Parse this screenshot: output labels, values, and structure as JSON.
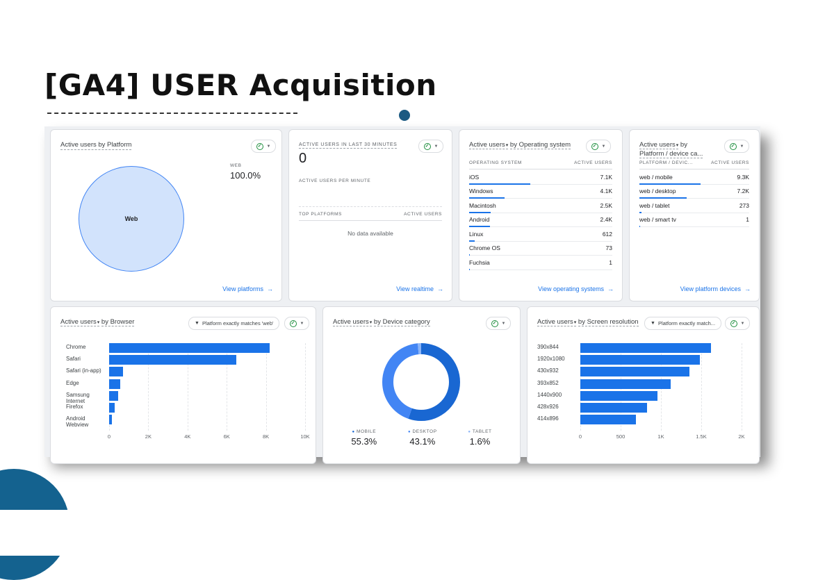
{
  "slide": {
    "title": "[GA4] USER  Acquisition"
  },
  "colors": {
    "accent": "#1a73e8",
    "pie_fill": "#d2e3fc",
    "brand_dark": "#14628f",
    "check_green": "#1e8e3e"
  },
  "icons": {
    "check": "check-circle-icon",
    "dropdown": "caret-down-icon",
    "arrow": "arrow-right-icon",
    "filter": "filter-icon"
  },
  "cards": {
    "platform": {
      "title": "Active users by Platform",
      "pie_label": "Web",
      "legend_label": "WEB",
      "legend_value": "100.0%",
      "link": "View platforms"
    },
    "realtime": {
      "title": "ACTIVE USERS IN LAST 30 MINUTES",
      "value": "0",
      "per_minute_label": "ACTIVE USERS PER MINUTE",
      "col_left": "TOP PLATFORMS",
      "col_right": "ACTIVE USERS",
      "empty": "No data available",
      "link": "View realtime"
    },
    "os": {
      "title_metric": "Active users",
      "title_dim": "by Operating system",
      "col_left": "OPERATING SYSTEM",
      "col_right": "ACTIVE USERS",
      "rows": [
        {
          "label": "iOS",
          "value": "7.1K",
          "share": 1.0
        },
        {
          "label": "Windows",
          "value": "4.1K",
          "share": 0.58
        },
        {
          "label": "Macintosh",
          "value": "2.5K",
          "share": 0.35
        },
        {
          "label": "Android",
          "value": "2.4K",
          "share": 0.34
        },
        {
          "label": "Linux",
          "value": "612",
          "share": 0.09
        },
        {
          "label": "Chrome OS",
          "value": "73",
          "share": 0.01
        },
        {
          "label": "Fuchsia",
          "value": "1",
          "share": 0.0
        }
      ],
      "link": "View operating systems"
    },
    "platform_device": {
      "title_metric": "Active users",
      "title_dim1": "by",
      "title_dim2": "Platform / device ca...",
      "col_left": "PLATFORM / DEVIC...",
      "col_right": "ACTIVE USERS",
      "rows": [
        {
          "label": "web / mobile",
          "value": "9.3K",
          "share": 1.0
        },
        {
          "label": "web / desktop",
          "value": "7.2K",
          "share": 0.77
        },
        {
          "label": "web / tablet",
          "value": "273",
          "share": 0.03
        },
        {
          "label": "web / smart tv",
          "value": "1",
          "share": 0.0
        }
      ],
      "link": "View platform devices"
    },
    "browser": {
      "title_metric": "Active users",
      "title_dim": "by Browser",
      "filter": "Platform exactly matches 'web'"
    },
    "device": {
      "title_metric": "Active users",
      "title_dim": "by Device category",
      "legend": [
        {
          "label": "MOBILE",
          "value": "55.3%"
        },
        {
          "label": "DESKTOP",
          "value": "43.1%"
        },
        {
          "label": "TABLET",
          "value": "1.6%"
        }
      ]
    },
    "screen": {
      "title_metric": "Active users",
      "title_dim": "by Screen resolution",
      "filter": "Platform exactly match..."
    }
  },
  "chart_data": [
    {
      "type": "bar",
      "orientation": "horizontal",
      "categories": [
        "Chrome",
        "Safari",
        "Safari (in-app)",
        "Edge",
        "Samsung Internet",
        "Firefox",
        "Android Webview"
      ],
      "values": [
        8200,
        6500,
        700,
        580,
        450,
        270,
        130
      ],
      "xticks": [
        "0",
        "2K",
        "4K",
        "6K",
        "8K",
        "10K"
      ],
      "xlim": [
        0,
        10000
      ]
    },
    {
      "type": "pie",
      "donut": true,
      "categories": [
        "MOBILE",
        "DESKTOP",
        "TABLET"
      ],
      "values": [
        55.3,
        43.1,
        1.6
      ],
      "colors": [
        "#1967d2",
        "#4285f4",
        "#8ab4f8"
      ]
    },
    {
      "type": "bar",
      "orientation": "horizontal",
      "categories": [
        "390x844",
        "1920x1080",
        "430x932",
        "393x852",
        "1440x900",
        "428x926",
        "414x896"
      ],
      "values": [
        1620,
        1480,
        1350,
        1120,
        960,
        830,
        690
      ],
      "xticks": [
        "0",
        "500",
        "1K",
        "1.5K",
        "2K"
      ],
      "xlim": [
        0,
        2000
      ]
    }
  ]
}
